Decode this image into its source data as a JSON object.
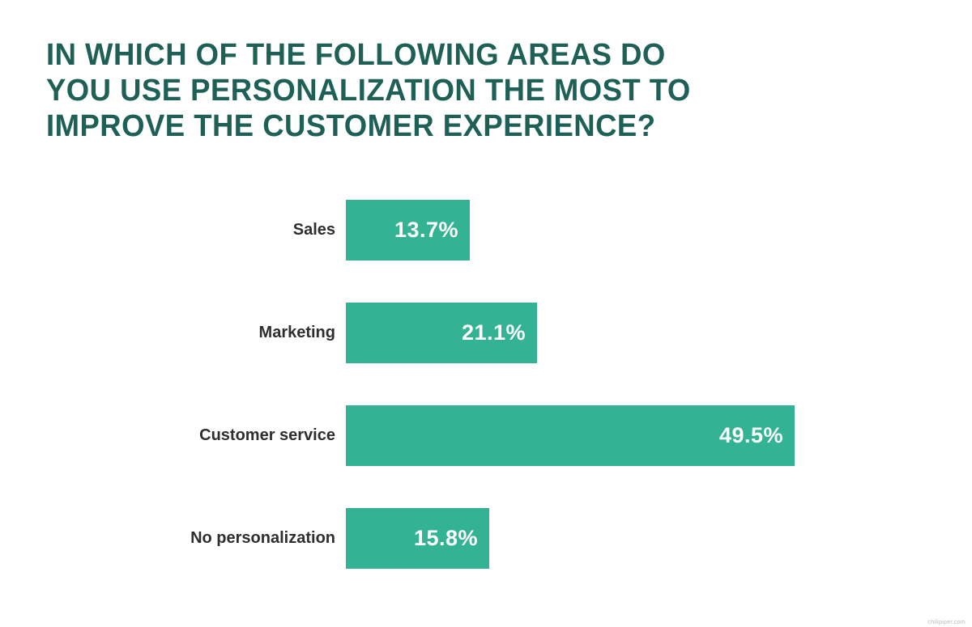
{
  "chart_data": {
    "type": "bar",
    "orientation": "horizontal",
    "title": "IN WHICH OF THE FOLLOWING AREAS DO YOU USE PERSONALIZATION THE MOST TO IMPROVE THE CUSTOMER EXPERIENCE?",
    "title_lines": [
      "IN WHICH OF THE FOLLOWING AREAS DO",
      "YOU USE PERSONALIZATION THE MOST TO",
      "IMPROVE THE CUSTOMER EXPERIENCE?"
    ],
    "categories": [
      "Sales",
      "Marketing",
      "Customer service",
      "No personalization"
    ],
    "values": [
      13.7,
      21.1,
      49.5,
      15.8
    ],
    "value_labels": [
      "13.7%",
      "21.1%",
      "49.5%",
      "15.8%"
    ],
    "xlabel": "",
    "ylabel": "",
    "xlim": [
      0,
      55
    ],
    "grid": false,
    "legend": false,
    "colors": {
      "bar": "#33b294",
      "title": "#1e6056",
      "category_label": "#2e2e2e",
      "value_label": "#ffffff",
      "background": "#ffffff"
    }
  },
  "watermark": {
    "text": "chilipiper.com"
  }
}
